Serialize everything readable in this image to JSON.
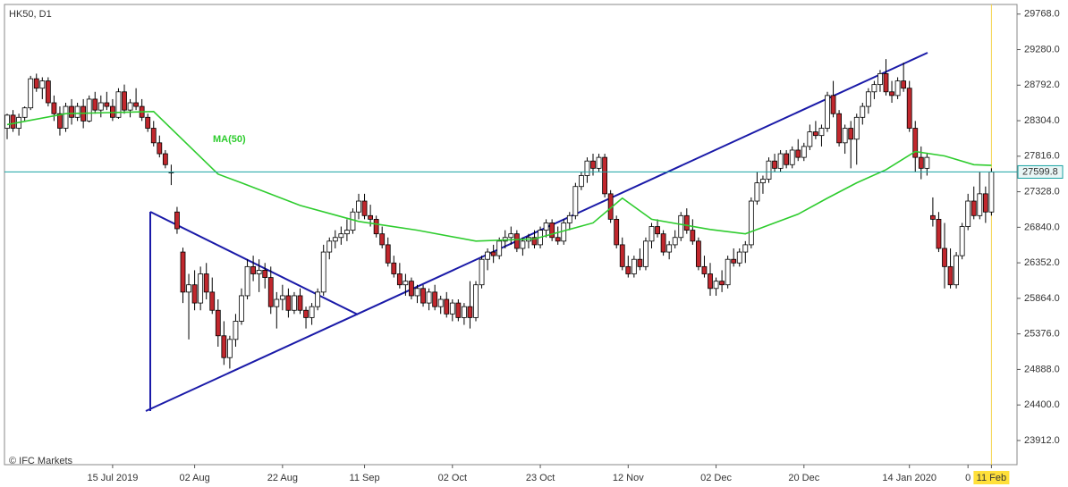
{
  "chart_data": {
    "type": "candlestick",
    "title": "HK50, D1",
    "source": "© IFC Markets",
    "categories": [
      null,
      null,
      null,
      null,
      null,
      null,
      null,
      null,
      null,
      null,
      null,
      null,
      null,
      null,
      null,
      null,
      null,
      null,
      "15 Jul 2019",
      null,
      null,
      null,
      null,
      null,
      null,
      null,
      null,
      null,
      null,
      null,
      null,
      null,
      "02 Aug",
      null,
      null,
      null,
      null,
      null,
      null,
      null,
      null,
      null,
      null,
      null,
      null,
      null,
      null,
      "22 Aug",
      null,
      null,
      null,
      null,
      null,
      null,
      null,
      null,
      null,
      null,
      null,
      null,
      null,
      "11 Sep",
      null,
      null,
      null,
      null,
      null,
      null,
      null,
      null,
      null,
      null,
      null,
      null,
      null,
      null,
      "02 Oct",
      null,
      null,
      null,
      null,
      null,
      null,
      null,
      null,
      null,
      null,
      null,
      null,
      null,
      null,
      "23 Oct",
      null,
      null,
      null,
      null,
      null,
      null,
      null,
      null,
      null,
      null,
      null,
      null,
      null,
      null,
      "12 Nov",
      null,
      null,
      null,
      null,
      null,
      null,
      null,
      null,
      null,
      null,
      null,
      null,
      null,
      null,
      "02 Dec",
      null,
      null,
      null,
      null,
      null,
      null,
      null,
      null,
      null,
      null,
      null,
      null,
      null,
      null,
      "20 Dec",
      null,
      null,
      null,
      null,
      null,
      null,
      null,
      null,
      null,
      null,
      null,
      null,
      null,
      null,
      null,
      null,
      null,
      "14 Jan 2020",
      null,
      null,
      null,
      null,
      null,
      null,
      null,
      null,
      null,
      "0",
      null,
      null,
      null,
      "11 Feb"
    ],
    "ohlc": [
      [
        28200,
        28400,
        28050,
        28380
      ],
      [
        28380,
        28450,
        28150,
        28200
      ],
      [
        28200,
        28400,
        28100,
        28350
      ],
      [
        28350,
        28500,
        28300,
        28480
      ],
      [
        28480,
        28920,
        28450,
        28880
      ],
      [
        28880,
        28950,
        28700,
        28750
      ],
      [
        28750,
        28900,
        28600,
        28850
      ],
      [
        28850,
        28900,
        28500,
        28550
      ],
      [
        28550,
        28650,
        28300,
        28400
      ],
      [
        28400,
        28500,
        28100,
        28200
      ],
      [
        28200,
        28550,
        28150,
        28500
      ],
      [
        28500,
        28600,
        28250,
        28350
      ],
      [
        28350,
        28550,
        28300,
        28500
      ],
      [
        28500,
        28600,
        28200,
        28300
      ],
      [
        28300,
        28650,
        28280,
        28600
      ],
      [
        28600,
        28700,
        28400,
        28450
      ],
      [
        28450,
        28650,
        28350,
        28550
      ],
      [
        28550,
        28700,
        28450,
        28500
      ],
      [
        28500,
        28600,
        28300,
        28350
      ],
      [
        28350,
        28750,
        28330,
        28700
      ],
      [
        28700,
        28800,
        28400,
        28450
      ],
      [
        28450,
        28600,
        28350,
        28550
      ],
      [
        28550,
        28750,
        28450,
        28500
      ],
      [
        28500,
        28600,
        28300,
        28350
      ],
      [
        28350,
        28400,
        28150,
        28200
      ],
      [
        28200,
        28300,
        27950,
        28000
      ],
      [
        28000,
        28100,
        27800,
        27850
      ],
      [
        27850,
        27900,
        27650,
        27700
      ],
      [
        27600,
        27700,
        27420,
        27600
      ],
      [
        27050,
        27120,
        26750,
        26820
      ],
      [
        26500,
        26560,
        25800,
        25950
      ],
      [
        25950,
        26200,
        25300,
        26050
      ],
      [
        26050,
        26250,
        25700,
        25800
      ],
      [
        25800,
        26300,
        25700,
        26200
      ],
      [
        26200,
        26350,
        25850,
        25950
      ],
      [
        25950,
        26150,
        25650,
        25700
      ],
      [
        25700,
        25850,
        25200,
        25350
      ],
      [
        25350,
        25550,
        24950,
        25050
      ],
      [
        25050,
        25350,
        24900,
        25300
      ],
      [
        25300,
        25650,
        25200,
        25550
      ],
      [
        25550,
        26000,
        25500,
        25900
      ],
      [
        25900,
        26400,
        25850,
        26300
      ],
      [
        26300,
        26450,
        26100,
        26200
      ],
      [
        26200,
        26400,
        25950,
        26250
      ],
      [
        26250,
        26350,
        26000,
        26150
      ],
      [
        26150,
        26300,
        25650,
        25750
      ],
      [
        25750,
        25950,
        25450,
        25850
      ],
      [
        25850,
        26050,
        25700,
        25900
      ],
      [
        25900,
        26000,
        25600,
        25700
      ],
      [
        25700,
        25950,
        25650,
        25900
      ],
      [
        25900,
        26000,
        25650,
        25700
      ],
      [
        25700,
        25750,
        25450,
        25600
      ],
      [
        25600,
        25800,
        25500,
        25750
      ],
      [
        25750,
        26000,
        25700,
        25950
      ],
      [
        25950,
        26600,
        25900,
        26500
      ],
      [
        26500,
        26700,
        26400,
        26650
      ],
      [
        26650,
        26800,
        26550,
        26700
      ],
      [
        26700,
        26850,
        26600,
        26750
      ],
      [
        26750,
        26950,
        26650,
        26800
      ],
      [
        26800,
        27100,
        26750,
        27050
      ],
      [
        27050,
        27300,
        26950,
        27200
      ],
      [
        27200,
        27300,
        26950,
        27000
      ],
      [
        27000,
        27150,
        26850,
        26950
      ],
      [
        26950,
        27000,
        26700,
        26750
      ],
      [
        26750,
        26850,
        26550,
        26600
      ],
      [
        26600,
        26700,
        26300,
        26350
      ],
      [
        26350,
        26450,
        26150,
        26200
      ],
      [
        26200,
        26350,
        26000,
        26050
      ],
      [
        26050,
        26200,
        25900,
        26100
      ],
      [
        26100,
        26150,
        25850,
        25900
      ],
      [
        25900,
        26050,
        25800,
        26000
      ],
      [
        26000,
        26050,
        25750,
        25800
      ],
      [
        25800,
        26000,
        25700,
        25950
      ],
      [
        25950,
        26050,
        25700,
        25750
      ],
      [
        25750,
        25900,
        25650,
        25850
      ],
      [
        25850,
        25950,
        25600,
        25650
      ],
      [
        25650,
        25850,
        25550,
        25800
      ],
      [
        25800,
        25850,
        25550,
        25600
      ],
      [
        25600,
        25800,
        25500,
        25750
      ],
      [
        25750,
        26100,
        25450,
        25600
      ],
      [
        25600,
        26100,
        25550,
        26050
      ],
      [
        26050,
        26450,
        26000,
        26400
      ],
      [
        26400,
        26550,
        26250,
        26500
      ],
      [
        26500,
        26600,
        26350,
        26450
      ],
      [
        26450,
        26700,
        26400,
        26650
      ],
      [
        26650,
        26800,
        26550,
        26700
      ],
      [
        26700,
        26850,
        26600,
        26750
      ],
      [
        26750,
        26800,
        26500,
        26550
      ],
      [
        26550,
        26700,
        26450,
        26650
      ],
      [
        26650,
        26750,
        26550,
        26700
      ],
      [
        26700,
        26800,
        26550,
        26600
      ],
      [
        26600,
        26850,
        26550,
        26800
      ],
      [
        26800,
        26950,
        26700,
        26900
      ],
      [
        26900,
        26950,
        26650,
        26700
      ],
      [
        26700,
        26850,
        26600,
        26650
      ],
      [
        26650,
        26950,
        26600,
        26900
      ],
      [
        26900,
        27050,
        26800,
        27000
      ],
      [
        27000,
        27450,
        26950,
        27400
      ],
      [
        27400,
        27600,
        27350,
        27550
      ],
      [
        27550,
        27800,
        27450,
        27750
      ],
      [
        27750,
        27850,
        27550,
        27650
      ],
      [
        27650,
        27850,
        27600,
        27800
      ],
      [
        27800,
        27850,
        27250,
        27300
      ],
      [
        27300,
        27350,
        26900,
        26950
      ],
      [
        26950,
        27000,
        26550,
        26600
      ],
      [
        26600,
        26700,
        26250,
        26300
      ],
      [
        26300,
        26450,
        26150,
        26200
      ],
      [
        26200,
        26450,
        26150,
        26400
      ],
      [
        26400,
        26550,
        26250,
        26300
      ],
      [
        26300,
        26700,
        26250,
        26650
      ],
      [
        26650,
        26900,
        26550,
        26850
      ],
      [
        26850,
        26950,
        26700,
        26750
      ],
      [
        26750,
        26800,
        26450,
        26500
      ],
      [
        26500,
        26650,
        26400,
        26600
      ],
      [
        26600,
        26800,
        26550,
        26700
      ],
      [
        26700,
        27050,
        26650,
        27000
      ],
      [
        27000,
        27100,
        26750,
        26800
      ],
      [
        26800,
        26950,
        26600,
        26650
      ],
      [
        26650,
        26700,
        26250,
        26300
      ],
      [
        26300,
        26450,
        26150,
        26200
      ],
      [
        26200,
        26350,
        25900,
        26000
      ],
      [
        26000,
        26150,
        25900,
        26100
      ],
      [
        26100,
        26250,
        25950,
        26050
      ],
      [
        26050,
        26450,
        26000,
        26400
      ],
      [
        26400,
        26550,
        26300,
        26350
      ],
      [
        26350,
        26550,
        26300,
        26500
      ],
      [
        26500,
        26650,
        26350,
        26600
      ],
      [
        26600,
        27250,
        26550,
        27200
      ],
      [
        27200,
        27600,
        27150,
        27450
      ],
      [
        27450,
        27550,
        27300,
        27500
      ],
      [
        27500,
        27800,
        27450,
        27750
      ],
      [
        27750,
        27850,
        27600,
        27650
      ],
      [
        27650,
        27900,
        27600,
        27850
      ],
      [
        27850,
        27900,
        27650,
        27700
      ],
      [
        27700,
        27950,
        27650,
        27900
      ],
      [
        27900,
        28050,
        27750,
        27800
      ],
      [
        27800,
        28000,
        27750,
        27950
      ],
      [
        27950,
        28250,
        27900,
        28150
      ],
      [
        28150,
        28300,
        28050,
        28100
      ],
      [
        28100,
        28250,
        27950,
        28200
      ],
      [
        28200,
        28700,
        28150,
        28650
      ],
      [
        28650,
        28850,
        28350,
        28400
      ],
      [
        28400,
        28450,
        27950,
        28000
      ],
      [
        28000,
        28250,
        27850,
        28200
      ],
      [
        28200,
        28300,
        27650,
        28050
      ],
      [
        28050,
        28400,
        27700,
        28350
      ],
      [
        28350,
        28550,
        28250,
        28500
      ],
      [
        28500,
        28750,
        28400,
        28700
      ],
      [
        28700,
        28850,
        28600,
        28800
      ],
      [
        28800,
        29000,
        28700,
        28950
      ],
      [
        28950,
        29150,
        28650,
        28700
      ],
      [
        28700,
        28850,
        28550,
        28650
      ],
      [
        28650,
        28900,
        28600,
        28850
      ],
      [
        28850,
        29100,
        28700,
        28750
      ],
      [
        28750,
        28850,
        28150,
        28200
      ],
      [
        28200,
        28300,
        27600,
        27800
      ],
      [
        27800,
        27950,
        27500,
        27650
      ],
      [
        27650,
        27850,
        27550,
        27800
      ],
      [
        27000,
        27250,
        26850,
        26950
      ],
      [
        26950,
        27050,
        26500,
        26550
      ],
      [
        26550,
        26900,
        26000,
        26300
      ],
      [
        26300,
        26550,
        26000,
        26050
      ],
      [
        26050,
        26500,
        26000,
        26450
      ],
      [
        26450,
        26900,
        26400,
        26850
      ],
      [
        26850,
        27300,
        26800,
        27200
      ],
      [
        27200,
        27400,
        26950,
        27000
      ],
      [
        27000,
        27600,
        26950,
        27300
      ],
      [
        27300,
        27400,
        26900,
        27050
      ],
      [
        27050,
        27650,
        27000,
        27599.8
      ]
    ],
    "up_color": "#ffffff",
    "down_color": "#c1272d",
    "ma": {
      "name": "MA(50)",
      "color": "#2ecc2e",
      "x": [
        0,
        10,
        25,
        36,
        40,
        50,
        60,
        70,
        80,
        90,
        100,
        105,
        110,
        120,
        126,
        130,
        135,
        140,
        145,
        150,
        155,
        160,
        165,
        168
      ],
      "values": [
        28250,
        28400,
        28430,
        27570,
        27450,
        27140,
        26920,
        26800,
        26650,
        26680,
        26900,
        27240,
        26950,
        26810,
        26750,
        26870,
        27020,
        27240,
        27450,
        27630,
        27880,
        27820,
        27700,
        27690
      ]
    },
    "last_price_color": "#17a2a2",
    "ylim": [
      23580,
      29900
    ],
    "yticks": [
      {
        "value": 23912,
        "label": "23912.0"
      },
      {
        "value": 24400,
        "label": "24400.0"
      },
      {
        "value": 24888,
        "label": "24888.0"
      },
      {
        "value": 25376,
        "label": "25376.0"
      },
      {
        "value": 25864,
        "label": "25864.0"
      },
      {
        "value": 26352,
        "label": "26352.0"
      },
      {
        "value": 26840,
        "label": "26840.0"
      },
      {
        "value": 27328,
        "label": "27328.0"
      },
      {
        "value": 27816,
        "label": "27816.0"
      },
      {
        "value": 28304,
        "label": "28304.0"
      },
      {
        "value": 28792,
        "label": "28792.0"
      },
      {
        "value": 29280,
        "label": "29280.0"
      },
      {
        "value": 29768,
        "label": "29768.0"
      }
    ]
  }
}
